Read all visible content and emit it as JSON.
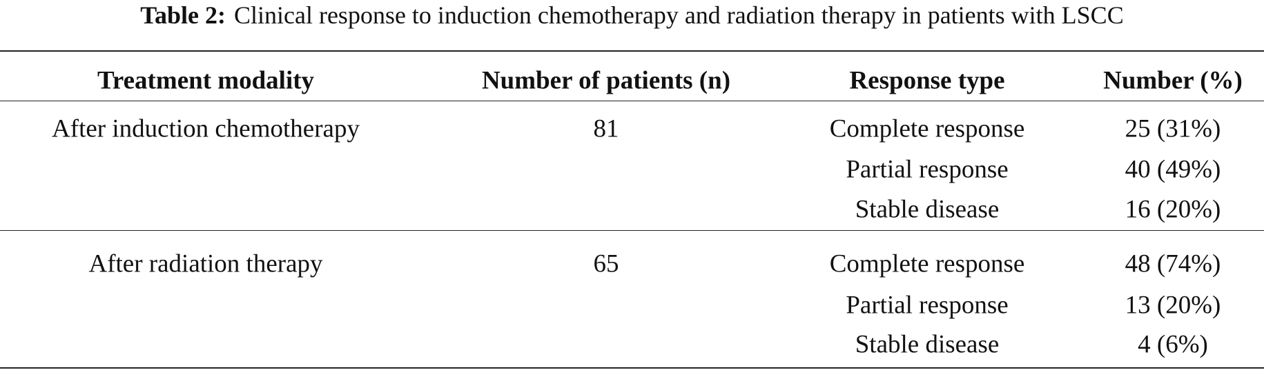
{
  "caption": {
    "label": "Table 2:",
    "text": "Clinical response to induction chemotherapy and radiation therapy in patients with LSCC"
  },
  "table": {
    "header": [
      "Treatment modality",
      "Number of patients (n)",
      "Response type",
      "Number (%)"
    ],
    "groups": [
      {
        "modality": "After induction chemotherapy",
        "n": "81",
        "responses": [
          [
            "Complete response",
            "25 (31%)"
          ],
          [
            "Partial response",
            "40 (49%)"
          ],
          [
            "Stable disease",
            "16 (20%)"
          ]
        ]
      },
      {
        "modality": "After radiation therapy",
        "n": "65",
        "responses": [
          [
            "Complete response",
            "48 (74%)"
          ],
          [
            "Partial response",
            "13 (20%)"
          ],
          [
            "Stable disease",
            "4 (6%)"
          ]
        ]
      }
    ]
  }
}
